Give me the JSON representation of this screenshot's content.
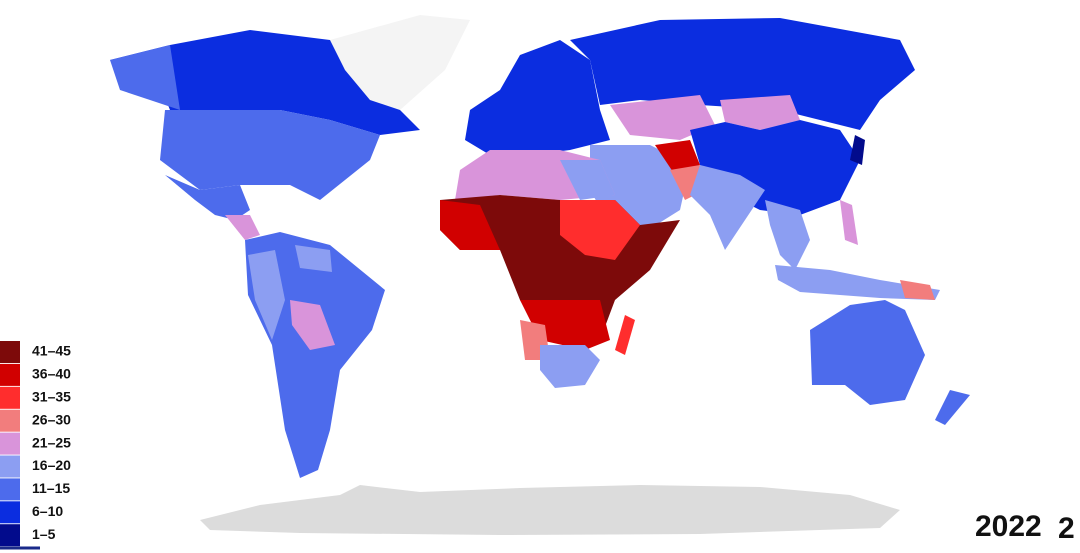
{
  "legend": [
    {
      "label": "41–45",
      "color": "#7d0a0a"
    },
    {
      "label": "36–40",
      "color": "#d10000"
    },
    {
      "label": "31–35",
      "color": "#ff2d2d"
    },
    {
      "label": "26–30",
      "color": "#f27d7d"
    },
    {
      "label": "21–25",
      "color": "#d994da"
    },
    {
      "label": "16–20",
      "color": "#8c9ef2"
    },
    {
      "label": "11–15",
      "color": "#4d6bec"
    },
    {
      "label": "6–10",
      "color": "#0b2de0"
    },
    {
      "label": "1–5",
      "color": "#020b8c"
    }
  ],
  "year": "2022",
  "year_clipped": "2"
}
